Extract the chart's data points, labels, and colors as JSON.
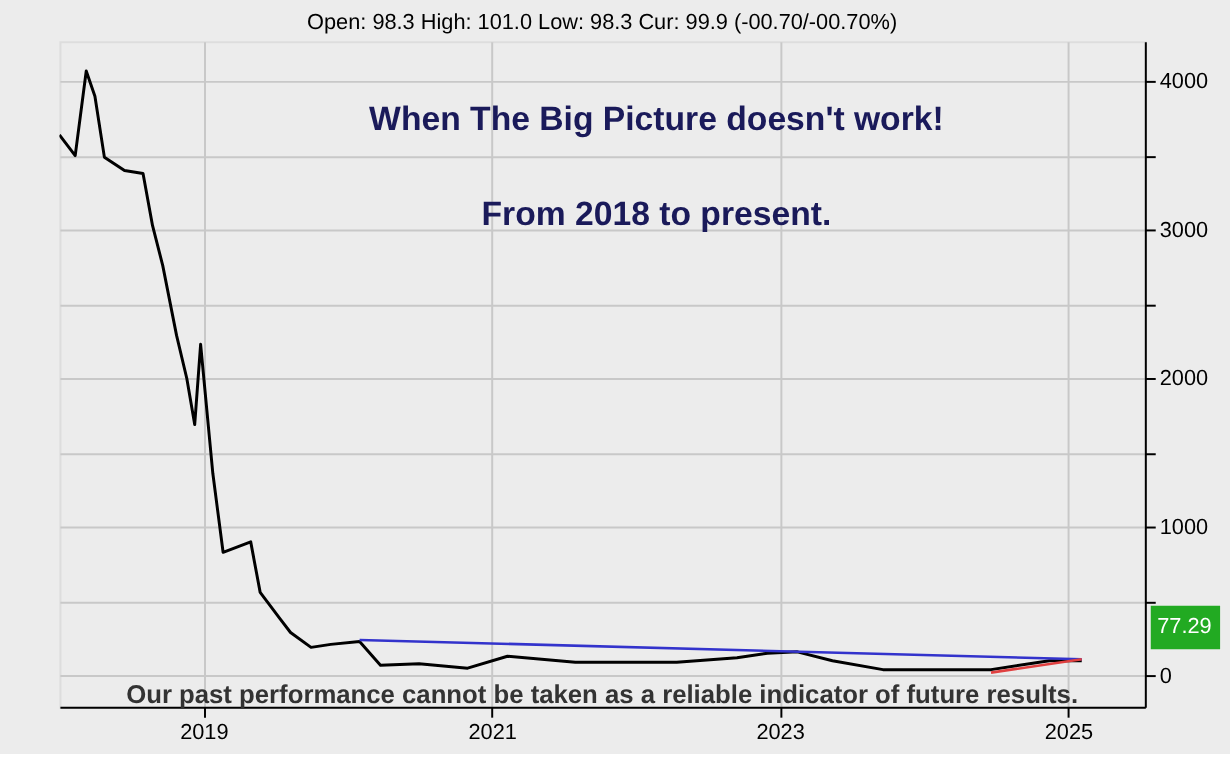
{
  "chart_data": {
    "type": "line",
    "subtitle": "Open: 98.3 High: 101.0 Low: 98.3 Cur: 99.9 (-00.70/-00.70%)",
    "annotations": [
      "When The Big Picture doesn't work!",
      "From 2018 to present.",
      "Our past performance cannot be taken as a reliable indicator of future results.",
      "77.29"
    ],
    "xlim": [
      "2018-01-01",
      "2025-07-15"
    ],
    "xticks": [
      {
        "value": "2019-01-01",
        "label": "2019"
      },
      {
        "value": "2021-01-01",
        "label": "2021"
      },
      {
        "value": "2023-01-01",
        "label": "2023"
      },
      {
        "value": "2025-01-01",
        "label": "2025"
      }
    ],
    "ylim": [
      -210,
      4270
    ],
    "yticks": [
      0,
      {
        "value": 500,
        "label": null
      },
      1000,
      {
        "value": 1500,
        "label": null
      },
      2000,
      {
        "value": 2500,
        "label": null
      },
      3000,
      {
        "value": 3500,
        "label": null
      },
      4000
    ],
    "grid": true,
    "line_style": "solid",
    "marker": "none",
    "series": [
      {
        "color": "#000000",
        "x": [
          "2018-01-01",
          "2018-02-10",
          "2018-03-10",
          "2018-04-01",
          "2018-04-25",
          "2018-06-15",
          "2018-08-01",
          "2018-08-25",
          "2018-09-20",
          "2018-10-25",
          "2018-11-20",
          "2018-12-10",
          "2018-12-25",
          "2019-01-25",
          "2019-02-20",
          "2019-05-01",
          "2019-05-25",
          "2019-07-15",
          "2019-08-10",
          "2019-10-01",
          "2019-11-20",
          "2020-02-01",
          "2020-03-25",
          "2020-07-01",
          "2020-11-01",
          "2021-02-10",
          "2021-08-01",
          "2022-04-15",
          "2022-09-15",
          "2022-12-01",
          "2023-02-15",
          "2023-05-15",
          "2023-09-20",
          "2024-06-20",
          "2024-11-15",
          "2025-02-05"
        ],
        "values": [
          3640,
          3500,
          4070,
          3900,
          3490,
          3400,
          3380,
          3030,
          2760,
          2290,
          2000,
          1690,
          2230,
          1360,
          830,
          900,
          560,
          380,
          290,
          190,
          210,
          230,
          70,
          80,
          50,
          130,
          90,
          90,
          120,
          150,
          160,
          100,
          40,
          40,
          100,
          100
        ]
      },
      {
        "color": "#3333cc",
        "x": [
          "2020-02-01",
          "2025-02-05"
        ],
        "values": [
          240,
          110
        ]
      },
      {
        "color": "#e04040",
        "x": [
          "2024-06-20",
          "2025-02-05"
        ],
        "values": [
          20,
          110
        ]
      }
    ]
  }
}
